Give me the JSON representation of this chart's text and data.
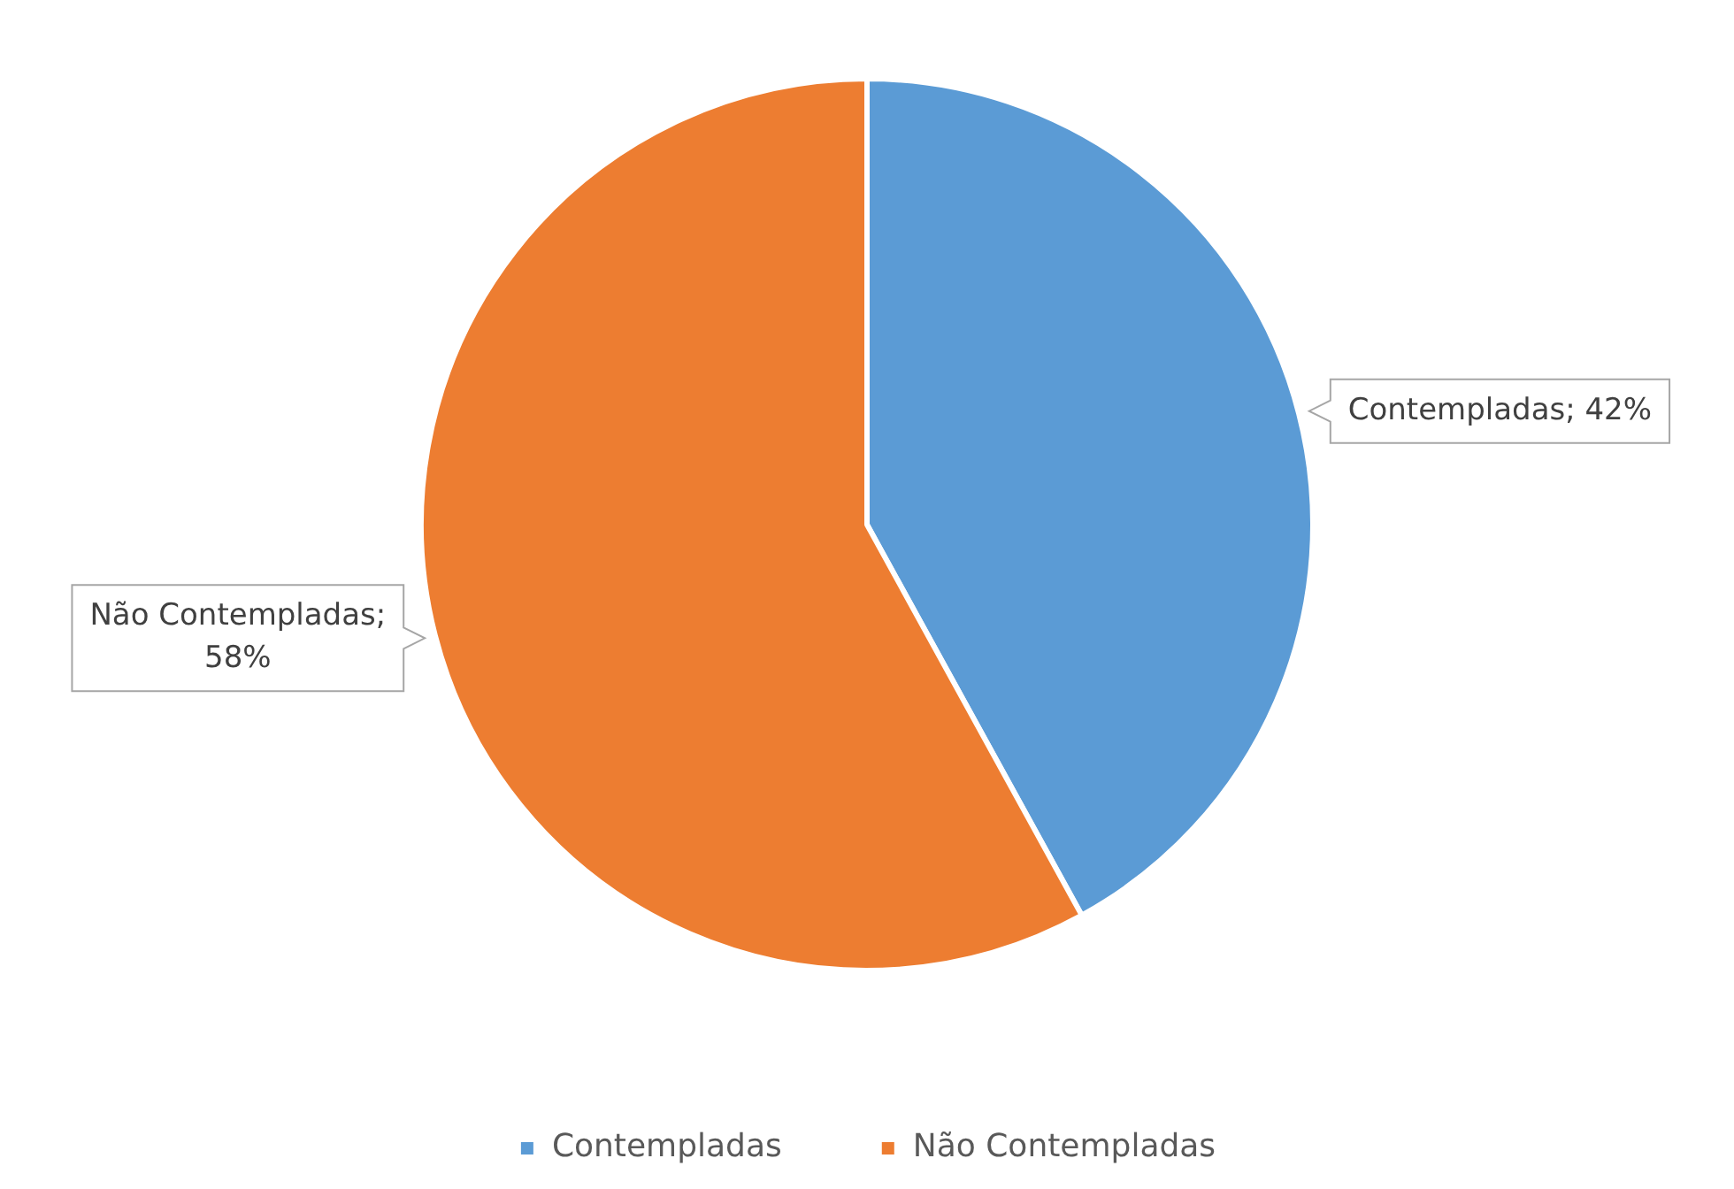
{
  "chart_data": {
    "type": "pie",
    "categories": [
      "Contempladas",
      "Não Contempladas"
    ],
    "values": [
      42,
      58
    ],
    "colors": [
      "#5b9bd5",
      "#ed7d31"
    ],
    "value_labels": [
      "Contempladas; 42%",
      "Não Contempladas; 58%"
    ],
    "legend": "bottom"
  }
}
